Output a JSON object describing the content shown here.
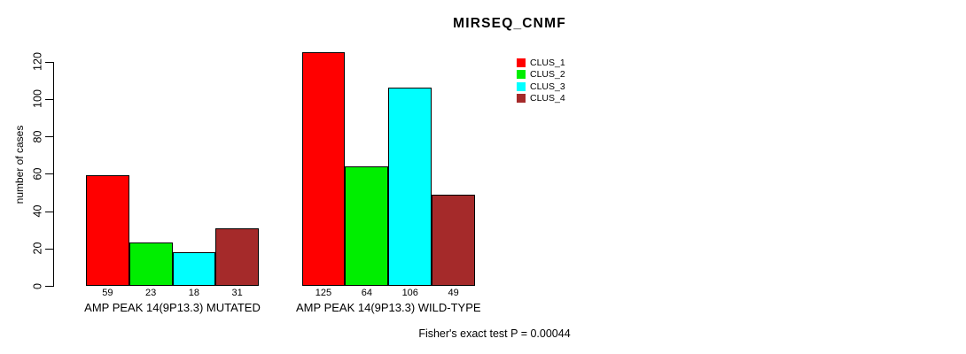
{
  "chart_data": {
    "type": "bar",
    "title": "MIRSEQ_CNMF",
    "ylabel": "number of cases",
    "xlabel": "",
    "categories": [
      "AMP PEAK 14(9P13.3) MUTATED",
      "AMP PEAK 14(9P13.3) WILD-TYPE"
    ],
    "series": [
      {
        "name": "CLUS_1",
        "color": "#ff0000",
        "values": [
          59,
          125
        ]
      },
      {
        "name": "CLUS_2",
        "color": "#00ee00",
        "values": [
          23,
          64
        ]
      },
      {
        "name": "CLUS_3",
        "color": "#00ffff",
        "values": [
          18,
          106
        ]
      },
      {
        "name": "CLUS_4",
        "color": "#a52a2a",
        "values": [
          31,
          49
        ]
      }
    ],
    "yticks": [
      0,
      20,
      40,
      60,
      80,
      100,
      120
    ],
    "ylim": [
      0,
      130
    ],
    "grid": false,
    "legend_position": "top-right",
    "bar_value_labels": true,
    "annotation": "Fisher's exact test P = 0.00044"
  }
}
